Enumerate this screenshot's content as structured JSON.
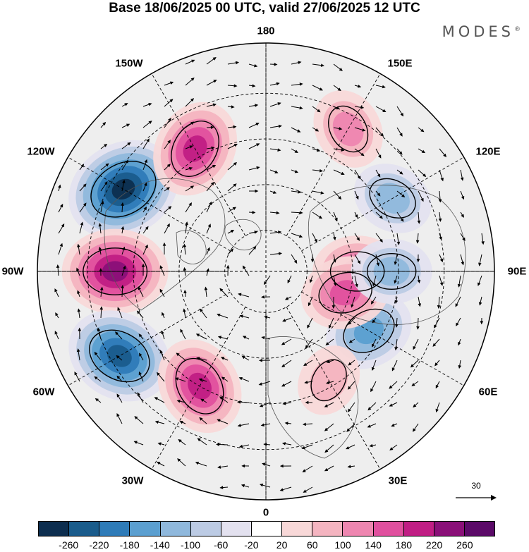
{
  "header": {
    "title": "Base 18/06/2025 00 UTC, valid 27/06/2025 12 UTC",
    "brand": "MODES"
  },
  "map": {
    "projection": "north-polar-stereographic",
    "longitude_labels": [
      "180",
      "150E",
      "120E",
      "90E",
      "60E",
      "30E",
      "0",
      "30W",
      "60W",
      "90W",
      "120W",
      "150W"
    ],
    "reference_vector_label": "30",
    "anomaly_features": [
      {
        "sign": "negative",
        "strength": 260,
        "near": "120W"
      },
      {
        "sign": "positive",
        "strength": 220,
        "near": "90W"
      },
      {
        "sign": "negative",
        "strength": 220,
        "near": "60W"
      },
      {
        "sign": "positive",
        "strength": 180,
        "near": "30W"
      },
      {
        "sign": "positive",
        "strength": 180,
        "near": "150W"
      },
      {
        "sign": "negative",
        "strength": 140,
        "near": "60E"
      },
      {
        "sign": "positive",
        "strength": 140,
        "near": "90E"
      },
      {
        "sign": "positive",
        "strength": 140,
        "near": "75E"
      },
      {
        "sign": "negative",
        "strength": 100,
        "near": "120E"
      },
      {
        "sign": "negative",
        "strength": 100,
        "near": "90E"
      },
      {
        "sign": "positive",
        "strength": 100,
        "near": "150E"
      },
      {
        "sign": "positive",
        "strength": 60,
        "near": "30E"
      }
    ],
    "colors": {
      "land_outline": "#555555",
      "grid": "#000000",
      "background_fill": "#eeeeee"
    }
  },
  "colorbar": {
    "tick_labels": [
      "-260",
      "-220",
      "-180",
      "-140",
      "-100",
      "-60",
      "-20",
      "20",
      "60",
      "100",
      "140",
      "180",
      "220",
      "260"
    ],
    "colors": [
      "#0d2e4f",
      "#1a5c8c",
      "#2e7bb8",
      "#5b9fd0",
      "#8fb8dc",
      "#bccbe4",
      "#e3e1ef",
      "#ffffff",
      "#f8d8d8",
      "#f4b4c0",
      "#ee86b0",
      "#e0509e",
      "#c01e84",
      "#8a1078",
      "#5b0a68"
    ]
  }
}
